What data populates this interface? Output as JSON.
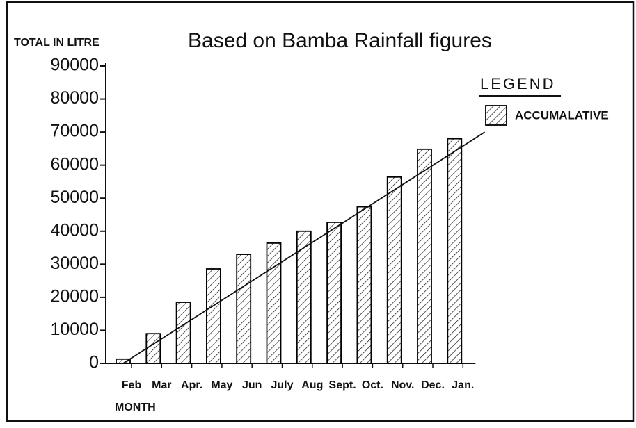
{
  "chart_data": {
    "type": "bar",
    "title": "Based on Bamba Rainfall figures",
    "y_label": "TOTAL IN LITRE",
    "x_label": "MONTH",
    "legend_title": "LEGEND",
    "legend": "right",
    "categories": [
      "Feb",
      "Mar",
      "Apr.",
      "May",
      "Jun",
      "July",
      "Aug",
      "Sept.",
      "Oct.",
      "Nov.",
      "Dec.",
      "Jan."
    ],
    "series": [
      {
        "name": "ACCUMALATIVE",
        "color": "#000000",
        "values": [
          1300,
          9000,
          18500,
          28600,
          33000,
          36400,
          40000,
          42700,
          47400,
          56400,
          64800,
          68000
        ]
      }
    ],
    "trend_line": [
      0,
      70000
    ],
    "ylim": [
      0,
      90000
    ],
    "yticks": [
      0,
      10000,
      20000,
      30000,
      40000,
      50000,
      60000,
      70000,
      80000,
      90000
    ]
  }
}
